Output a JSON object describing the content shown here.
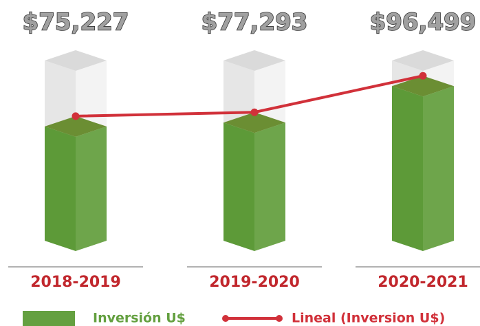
{
  "chart_data": {
    "type": "bar3d",
    "categories": [
      "2018-2019",
      "2019-2020",
      "2020-2021"
    ],
    "series": [
      {
        "name": "Inversión U$",
        "color": "#64a040",
        "values": [
          75227,
          77293,
          96499
        ],
        "value_labels": [
          "$75,227",
          "$77,293",
          "$96,499"
        ]
      },
      {
        "name": "Lineal (Inversion U$)",
        "type": "line",
        "color": "#d1313a",
        "values": [
          75227,
          77293,
          96499
        ]
      }
    ],
    "ylim": [
      15000,
      110000
    ]
  }
}
